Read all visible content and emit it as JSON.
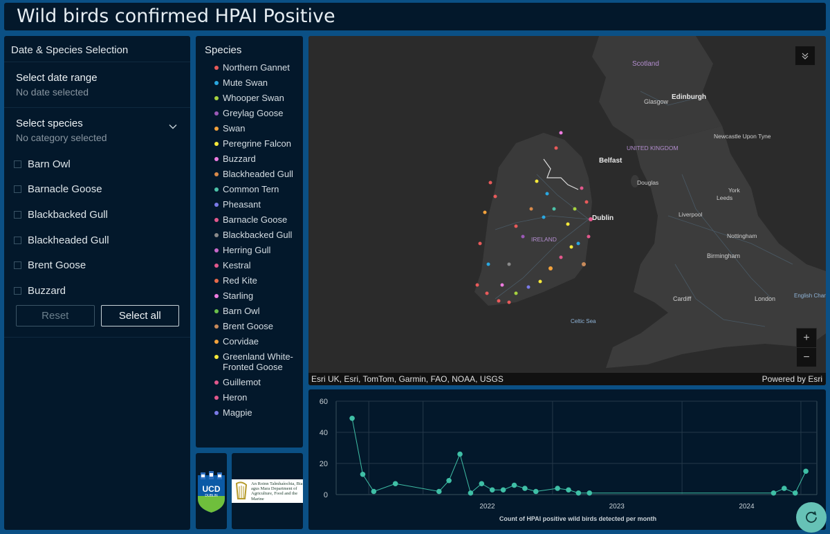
{
  "app": {
    "title": "Wild birds confirmed HPAI Positive"
  },
  "filter_panel": {
    "title": "Date & Species Selection",
    "date_label": "Select date range",
    "date_placeholder": "No date selected",
    "species_label": "Select species",
    "species_placeholder": "No category selected",
    "options": [
      "Barn Owl",
      "Barnacle Goose",
      "Blackbacked Gull",
      "Blackheaded Gull",
      "Brent Goose",
      "Buzzard"
    ],
    "reset_label": "Reset",
    "select_all_label": "Select all"
  },
  "legend": {
    "title": "Species",
    "items": [
      {
        "label": "Northern Gannet",
        "color": "#e85a5a"
      },
      {
        "label": "Mute Swan",
        "color": "#2aa7e0"
      },
      {
        "label": "Whooper Swan",
        "color": "#a6d23f"
      },
      {
        "label": "Greylag Goose",
        "color": "#9b59b6"
      },
      {
        "label": "Swan",
        "color": "#f3a23c"
      },
      {
        "label": "Peregrine Falcon",
        "color": "#f5e83a"
      },
      {
        "label": "Buzzard",
        "color": "#ee7be0"
      },
      {
        "label": "Blackheaded Gull",
        "color": "#d98a4a"
      },
      {
        "label": "Common Tern",
        "color": "#4cc2a8"
      },
      {
        "label": "Pheasant",
        "color": "#7a7ae8"
      },
      {
        "label": "Barnacle Goose",
        "color": "#e2588c"
      },
      {
        "label": "Blackbacked Gull",
        "color": "#8a8a8a"
      },
      {
        "label": "Herring Gull",
        "color": "#c868c8"
      },
      {
        "label": "Kestral",
        "color": "#e2588c"
      },
      {
        "label": "Red Kite",
        "color": "#e86a4a"
      },
      {
        "label": "Starling",
        "color": "#ee7be0"
      },
      {
        "label": "Barn Owl",
        "color": "#6abf4b"
      },
      {
        "label": "Brent Goose",
        "color": "#c88a5a"
      },
      {
        "label": "Corvidae",
        "color": "#f3a23c"
      },
      {
        "label": "Greenland White-Fronted Goose",
        "color": "#f5e83a"
      },
      {
        "label": "Guillemot",
        "color": "#e2588c"
      },
      {
        "label": "Heron",
        "color": "#e2588c"
      },
      {
        "label": "Magpie",
        "color": "#7a7ae8"
      }
    ]
  },
  "logos": {
    "ucd_text": "UCD",
    "ucd_sub": "DUBLIN",
    "dept_text": "An Roinn Talmhaíochta, Bia agus Mara Department of Agriculture, Food and the Marine"
  },
  "map": {
    "labels": [
      "Scotland",
      "Edinburgh",
      "Glasgow",
      "Newcastle Upon Tyne",
      "UNITED KINGDOM",
      "Belfast",
      "Douglas",
      "York",
      "Leeds",
      "Dublin",
      "IRELAND",
      "Liverpool",
      "Nottingham",
      "Birmingham",
      "Cardiff",
      "London",
      "English Channel",
      "Celtic Sea"
    ],
    "attribution": "Esri UK, Esri, TomTom, Garmin, FAO, NOAA, USGS",
    "powered_by": "Powered by Esri",
    "zoom_in": "+",
    "zoom_out": "−"
  },
  "chart_data": {
    "type": "line",
    "title": "Count of HPAI positive wild birds detected per month",
    "xlabel": "Count of HPAI positive wild birds detected per month",
    "ylabel": "",
    "ylim": [
      0,
      60
    ],
    "yticks": [
      0,
      20,
      40,
      60
    ],
    "xticks": [
      "2022",
      "2023",
      "2024"
    ],
    "color": "#3fbfa6",
    "points": [
      {
        "x": "2021-06",
        "y": 49
      },
      {
        "x": "2021-07",
        "y": 13
      },
      {
        "x": "2021-08",
        "y": 2
      },
      {
        "x": "2021-10",
        "y": 7
      },
      {
        "x": "2022-02",
        "y": 2
      },
      {
        "x": "2022-03",
        "y": 9
      },
      {
        "x": "2022-04",
        "y": 26
      },
      {
        "x": "2022-05",
        "y": 1
      },
      {
        "x": "2022-06",
        "y": 7
      },
      {
        "x": "2022-07",
        "y": 3
      },
      {
        "x": "2022-08",
        "y": 3
      },
      {
        "x": "2022-09",
        "y": 6
      },
      {
        "x": "2022-10",
        "y": 4
      },
      {
        "x": "2022-11",
        "y": 2
      },
      {
        "x": "2023-01",
        "y": 4
      },
      {
        "x": "2023-02",
        "y": 3
      },
      {
        "x": "2023-03",
        "y": 1
      },
      {
        "x": "2023-04",
        "y": 1
      },
      {
        "x": "2024-09",
        "y": 1
      },
      {
        "x": "2024-10",
        "y": 4
      },
      {
        "x": "2024-11",
        "y": 1
      },
      {
        "x": "2024-12",
        "y": 15
      }
    ]
  }
}
